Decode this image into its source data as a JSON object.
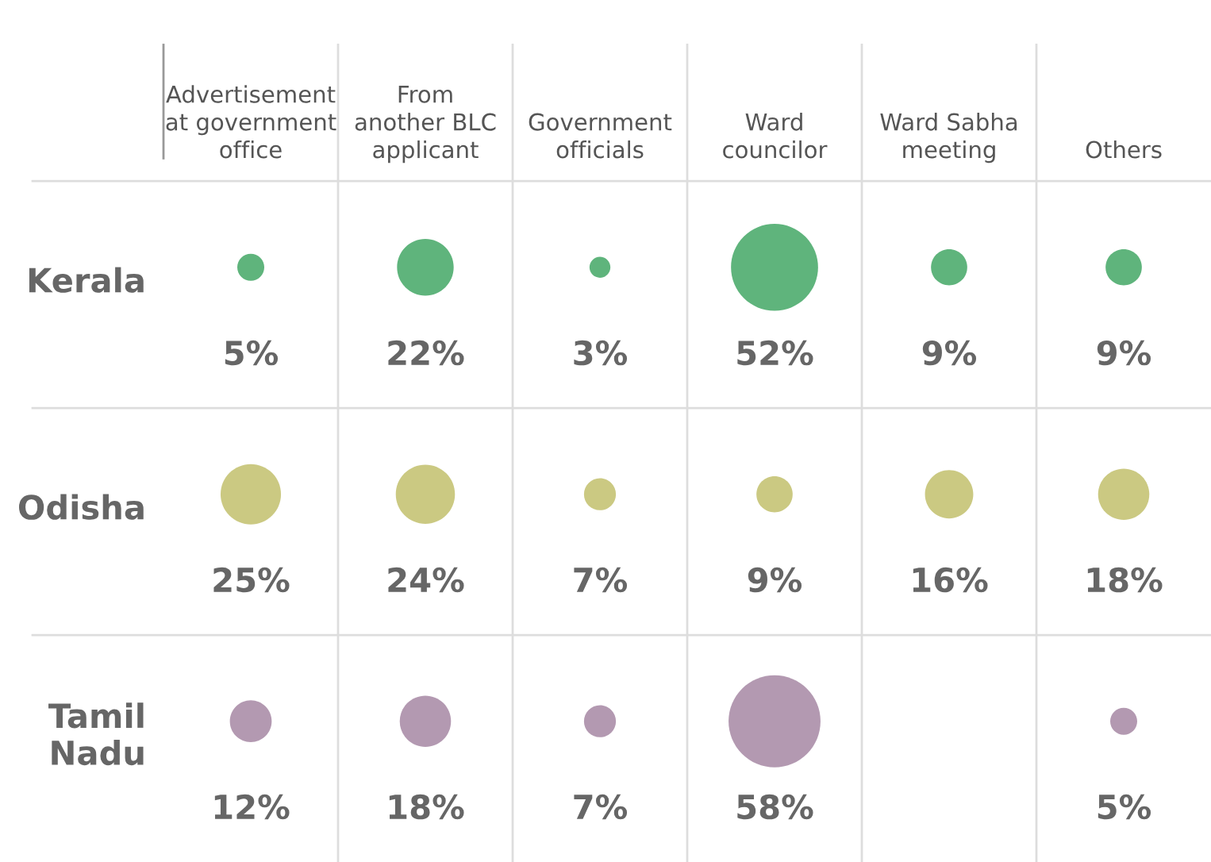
{
  "chart_data": {
    "type": "other",
    "categories": [
      "Advertisement\nat government\noffice",
      "From\nanother BLC\napplicant",
      "Government\nofficials",
      "Ward\ncouncilor",
      "Ward Sabha\nmeeting",
      "Others"
    ],
    "y_categories": [
      "Kerala",
      "Odisha",
      "Tamil\nNadu"
    ],
    "series": [
      {
        "color": "#5fb47c",
        "values": [
          5,
          22,
          3,
          52,
          9,
          9
        ],
        "value_labels": [
          "5%",
          "22%",
          "3%",
          "52%",
          "9%",
          "9%"
        ]
      },
      {
        "color": "#cbc982",
        "values": [
          25,
          24,
          7,
          9,
          16,
          18
        ],
        "value_labels": [
          "25%",
          "24%",
          "7%",
          "9%",
          "16%",
          "18%"
        ]
      },
      {
        "color": "#b399b1",
        "values": [
          12,
          18,
          7,
          58,
          null,
          5
        ],
        "value_labels": [
          "12%",
          "18%",
          "7%",
          "58%",
          null,
          "5%"
        ]
      }
    ]
  }
}
